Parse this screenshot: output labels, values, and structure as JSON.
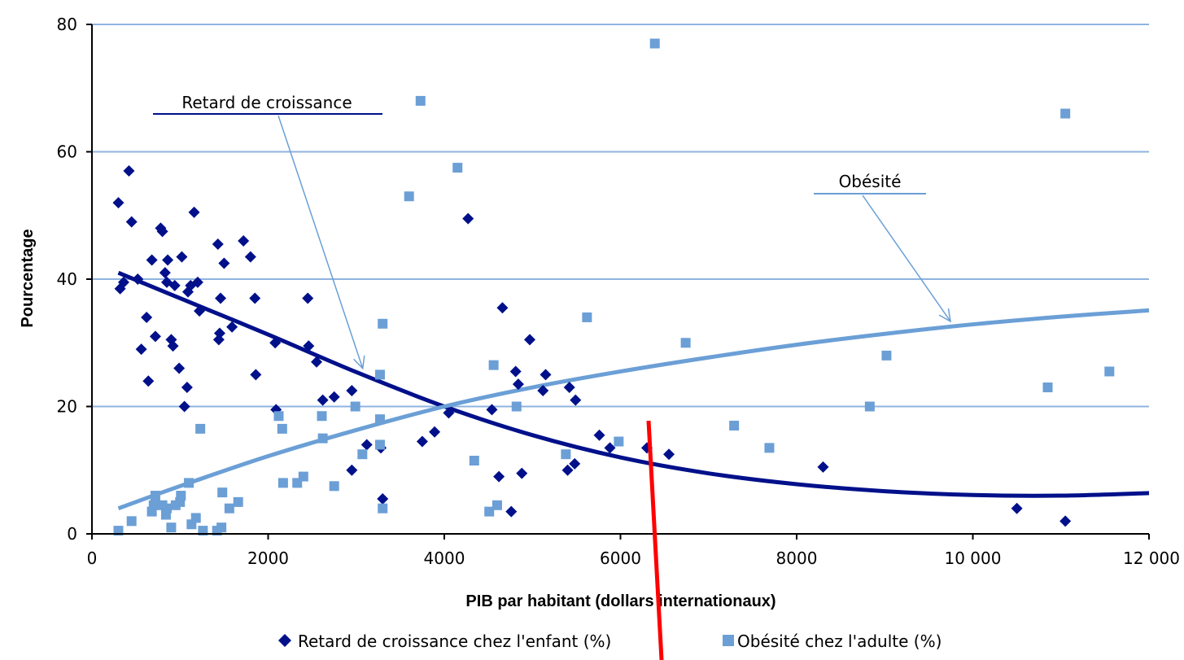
{
  "chart_data": {
    "type": "scatter",
    "title": "",
    "xlabel": "PIB par habitant (dollars internationaux)",
    "ylabel": "Pourcentage",
    "xlim": [
      0,
      12000
    ],
    "ylim": [
      0,
      80
    ],
    "x_ticks": [
      0,
      2000,
      4000,
      6000,
      8000,
      10000,
      12000
    ],
    "x_tick_labels": [
      "0",
      "2000",
      "4000",
      "6000",
      "8000",
      "10 000",
      "12 000"
    ],
    "y_ticks": [
      0,
      20,
      40,
      60,
      80
    ],
    "y_tick_labels": [
      "0",
      "20",
      "40",
      "60",
      "80"
    ],
    "grid": "horizontal",
    "legend_position": "bottom",
    "colors": {
      "stunting": "#00108a",
      "obesity": "#6b9fd6",
      "grid": "#8fb3e0",
      "overlay": "#ff0000"
    },
    "series": [
      {
        "name": "Retard de croissance chez l'enfant (%)",
        "marker": "diamond",
        "points": [
          [
            300,
            52
          ],
          [
            320,
            38.5
          ],
          [
            360,
            39.5
          ],
          [
            420,
            57
          ],
          [
            450,
            49
          ],
          [
            520,
            40
          ],
          [
            560,
            29
          ],
          [
            620,
            34
          ],
          [
            640,
            24
          ],
          [
            680,
            43
          ],
          [
            720,
            31
          ],
          [
            780,
            48
          ],
          [
            800,
            47.5
          ],
          [
            830,
            41
          ],
          [
            850,
            39.5
          ],
          [
            860,
            43
          ],
          [
            900,
            30.5
          ],
          [
            920,
            29.5
          ],
          [
            940,
            39
          ],
          [
            990,
            26
          ],
          [
            1020,
            43.5
          ],
          [
            1050,
            20
          ],
          [
            1080,
            23
          ],
          [
            1090,
            38
          ],
          [
            1120,
            39
          ],
          [
            1160,
            50.5
          ],
          [
            1200,
            39.5
          ],
          [
            1220,
            35
          ],
          [
            1430,
            45.5
          ],
          [
            1440,
            30.5
          ],
          [
            1450,
            31.5
          ],
          [
            1460,
            37
          ],
          [
            1500,
            42.5
          ],
          [
            1590,
            32.5
          ],
          [
            1720,
            46
          ],
          [
            1800,
            43.5
          ],
          [
            1850,
            37
          ],
          [
            1860,
            25
          ],
          [
            2080,
            30
          ],
          [
            2090,
            19.5
          ],
          [
            2450,
            37
          ],
          [
            2460,
            29.5
          ],
          [
            2550,
            27
          ],
          [
            2620,
            21
          ],
          [
            2750,
            21.5
          ],
          [
            2950,
            22.5
          ],
          [
            2950,
            10
          ],
          [
            3120,
            14
          ],
          [
            3280,
            13.5
          ],
          [
            3300,
            5.5
          ],
          [
            3750,
            14.5
          ],
          [
            3890,
            16
          ],
          [
            4050,
            19
          ],
          [
            4270,
            49.5
          ],
          [
            4540,
            19.5
          ],
          [
            4620,
            9
          ],
          [
            4660,
            35.5
          ],
          [
            4760,
            3.5
          ],
          [
            4810,
            25.5
          ],
          [
            4840,
            23.5
          ],
          [
            4880,
            9.5
          ],
          [
            4970,
            30.5
          ],
          [
            5120,
            22.5
          ],
          [
            5150,
            25
          ],
          [
            5400,
            10
          ],
          [
            5420,
            23
          ],
          [
            5480,
            11
          ],
          [
            5490,
            21
          ],
          [
            5760,
            15.5
          ],
          [
            5880,
            13.5
          ],
          [
            6300,
            13.5
          ],
          [
            6550,
            12.5
          ],
          [
            8300,
            10.5
          ],
          [
            10500,
            4
          ],
          [
            11050,
            2
          ]
        ],
        "trend": [
          [
            300,
            41
          ],
          [
            1000,
            37
          ],
          [
            2000,
            31.3
          ],
          [
            3000,
            25.4
          ],
          [
            4000,
            20
          ],
          [
            5000,
            15.5
          ],
          [
            6000,
            12
          ],
          [
            7000,
            9.5
          ],
          [
            8000,
            7.8
          ],
          [
            9000,
            6.7
          ],
          [
            10000,
            6.1
          ],
          [
            11000,
            6
          ],
          [
            12000,
            6.4
          ]
        ]
      },
      {
        "name": "Obésité chez l'adulte (%)",
        "marker": "square",
        "points": [
          [
            300,
            0.5
          ],
          [
            450,
            2
          ],
          [
            680,
            3.5
          ],
          [
            700,
            4.5
          ],
          [
            720,
            6
          ],
          [
            800,
            4.5
          ],
          [
            840,
            3
          ],
          [
            850,
            4
          ],
          [
            900,
            1
          ],
          [
            950,
            4.5
          ],
          [
            1000,
            5
          ],
          [
            1010,
            6
          ],
          [
            1100,
            8
          ],
          [
            1130,
            1.5
          ],
          [
            1180,
            2.5
          ],
          [
            1230,
            16.5
          ],
          [
            1260,
            0.5
          ],
          [
            1420,
            0.5
          ],
          [
            1470,
            1
          ],
          [
            1480,
            6.5
          ],
          [
            1560,
            4
          ],
          [
            1660,
            5
          ],
          [
            2120,
            18.5
          ],
          [
            2160,
            16.5
          ],
          [
            2170,
            8
          ],
          [
            2330,
            8
          ],
          [
            2400,
            9
          ],
          [
            2610,
            18.5
          ],
          [
            2620,
            15
          ],
          [
            2750,
            7.5
          ],
          [
            2990,
            20
          ],
          [
            3070,
            12.5
          ],
          [
            3270,
            14
          ],
          [
            3270,
            18
          ],
          [
            3300,
            33
          ],
          [
            3300,
            4
          ],
          [
            3270,
            25
          ],
          [
            3600,
            53
          ],
          [
            3730,
            68
          ],
          [
            4150,
            57.5
          ],
          [
            4340,
            11.5
          ],
          [
            4510,
            3.5
          ],
          [
            4560,
            26.5
          ],
          [
            4600,
            4.5
          ],
          [
            4820,
            20
          ],
          [
            5380,
            12.5
          ],
          [
            5620,
            34
          ],
          [
            5980,
            14.5
          ],
          [
            6390,
            77
          ],
          [
            6740,
            30
          ],
          [
            7290,
            17
          ],
          [
            7690,
            13.5
          ],
          [
            8830,
            20
          ],
          [
            9020,
            28
          ],
          [
            10850,
            23
          ],
          [
            11050,
            66
          ],
          [
            11550,
            25.5
          ]
        ],
        "trend": [
          [
            300,
            4
          ],
          [
            1000,
            7.5
          ],
          [
            2000,
            12.2
          ],
          [
            3000,
            16.3
          ],
          [
            4000,
            20
          ],
          [
            5000,
            23
          ],
          [
            6000,
            25.5
          ],
          [
            7000,
            27.7
          ],
          [
            8000,
            29.7
          ],
          [
            9000,
            31.4
          ],
          [
            10000,
            32.9
          ],
          [
            11000,
            34.1
          ],
          [
            12000,
            35.1
          ]
        ]
      }
    ],
    "annotations": [
      {
        "text": "Retard de croissance",
        "target": [
          3000,
          27
        ]
      },
      {
        "text": "Obésité",
        "target": [
          9700,
          34
        ]
      }
    ]
  }
}
